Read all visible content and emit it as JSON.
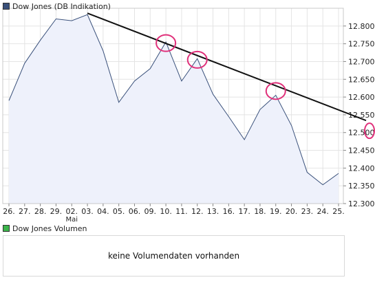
{
  "legend_main": {
    "label": "Dow Jones (DB Indikation)",
    "color": "#39507a"
  },
  "legend_volume": {
    "label": "Dow Jones Volumen",
    "color": "#3cb44b"
  },
  "volume_message": "keine Volumendaten vorhanden",
  "chart_data": {
    "type": "area",
    "x": [
      "26.",
      "27.",
      "28.",
      "29.",
      "02.",
      "03.",
      "04.",
      "05.",
      "06.",
      "09.",
      "10.",
      "11.",
      "12.",
      "13.",
      "16.",
      "17.",
      "18.",
      "19.",
      "20.",
      "23.",
      "24.",
      "25."
    ],
    "x_sublabels": {
      "02.": "Mai"
    },
    "series": [
      {
        "values": [
          12590,
          12695,
          12760,
          12820,
          12815,
          12832,
          12730,
          12585,
          12645,
          12680,
          12755,
          12645,
          12708,
          12608,
          12545,
          12480,
          12565,
          12605,
          12520,
          12388,
          12353,
          12385
        ],
        "line_color": "#39507a",
        "fill_color": "#eef1fb"
      }
    ],
    "ylim": [
      12300,
      12850
    ],
    "yticks": [
      12300,
      12350,
      12400,
      12450,
      12500,
      12550,
      12600,
      12650,
      12700,
      12750,
      12800
    ],
    "ytick_labels": [
      "12.300",
      "12.350",
      "12.400",
      "12.450",
      "12.500",
      "12.550",
      "12.600",
      "12.650",
      "12.700",
      "12.750",
      "12.800"
    ],
    "grid": true,
    "annotations": {
      "trendline": {
        "start": {
          "x": "03.",
          "y": 12836
        },
        "end": {
          "y": 12534
        },
        "color": "#111111"
      },
      "circles": [
        {
          "x": "10.",
          "y": 12752
        },
        {
          "x": "12.",
          "y": 12705
        },
        {
          "x": "19.",
          "y": 12617
        },
        {
          "y": 12505,
          "position": "right-of-axis"
        }
      ],
      "circle_color": "#e0307a"
    }
  }
}
